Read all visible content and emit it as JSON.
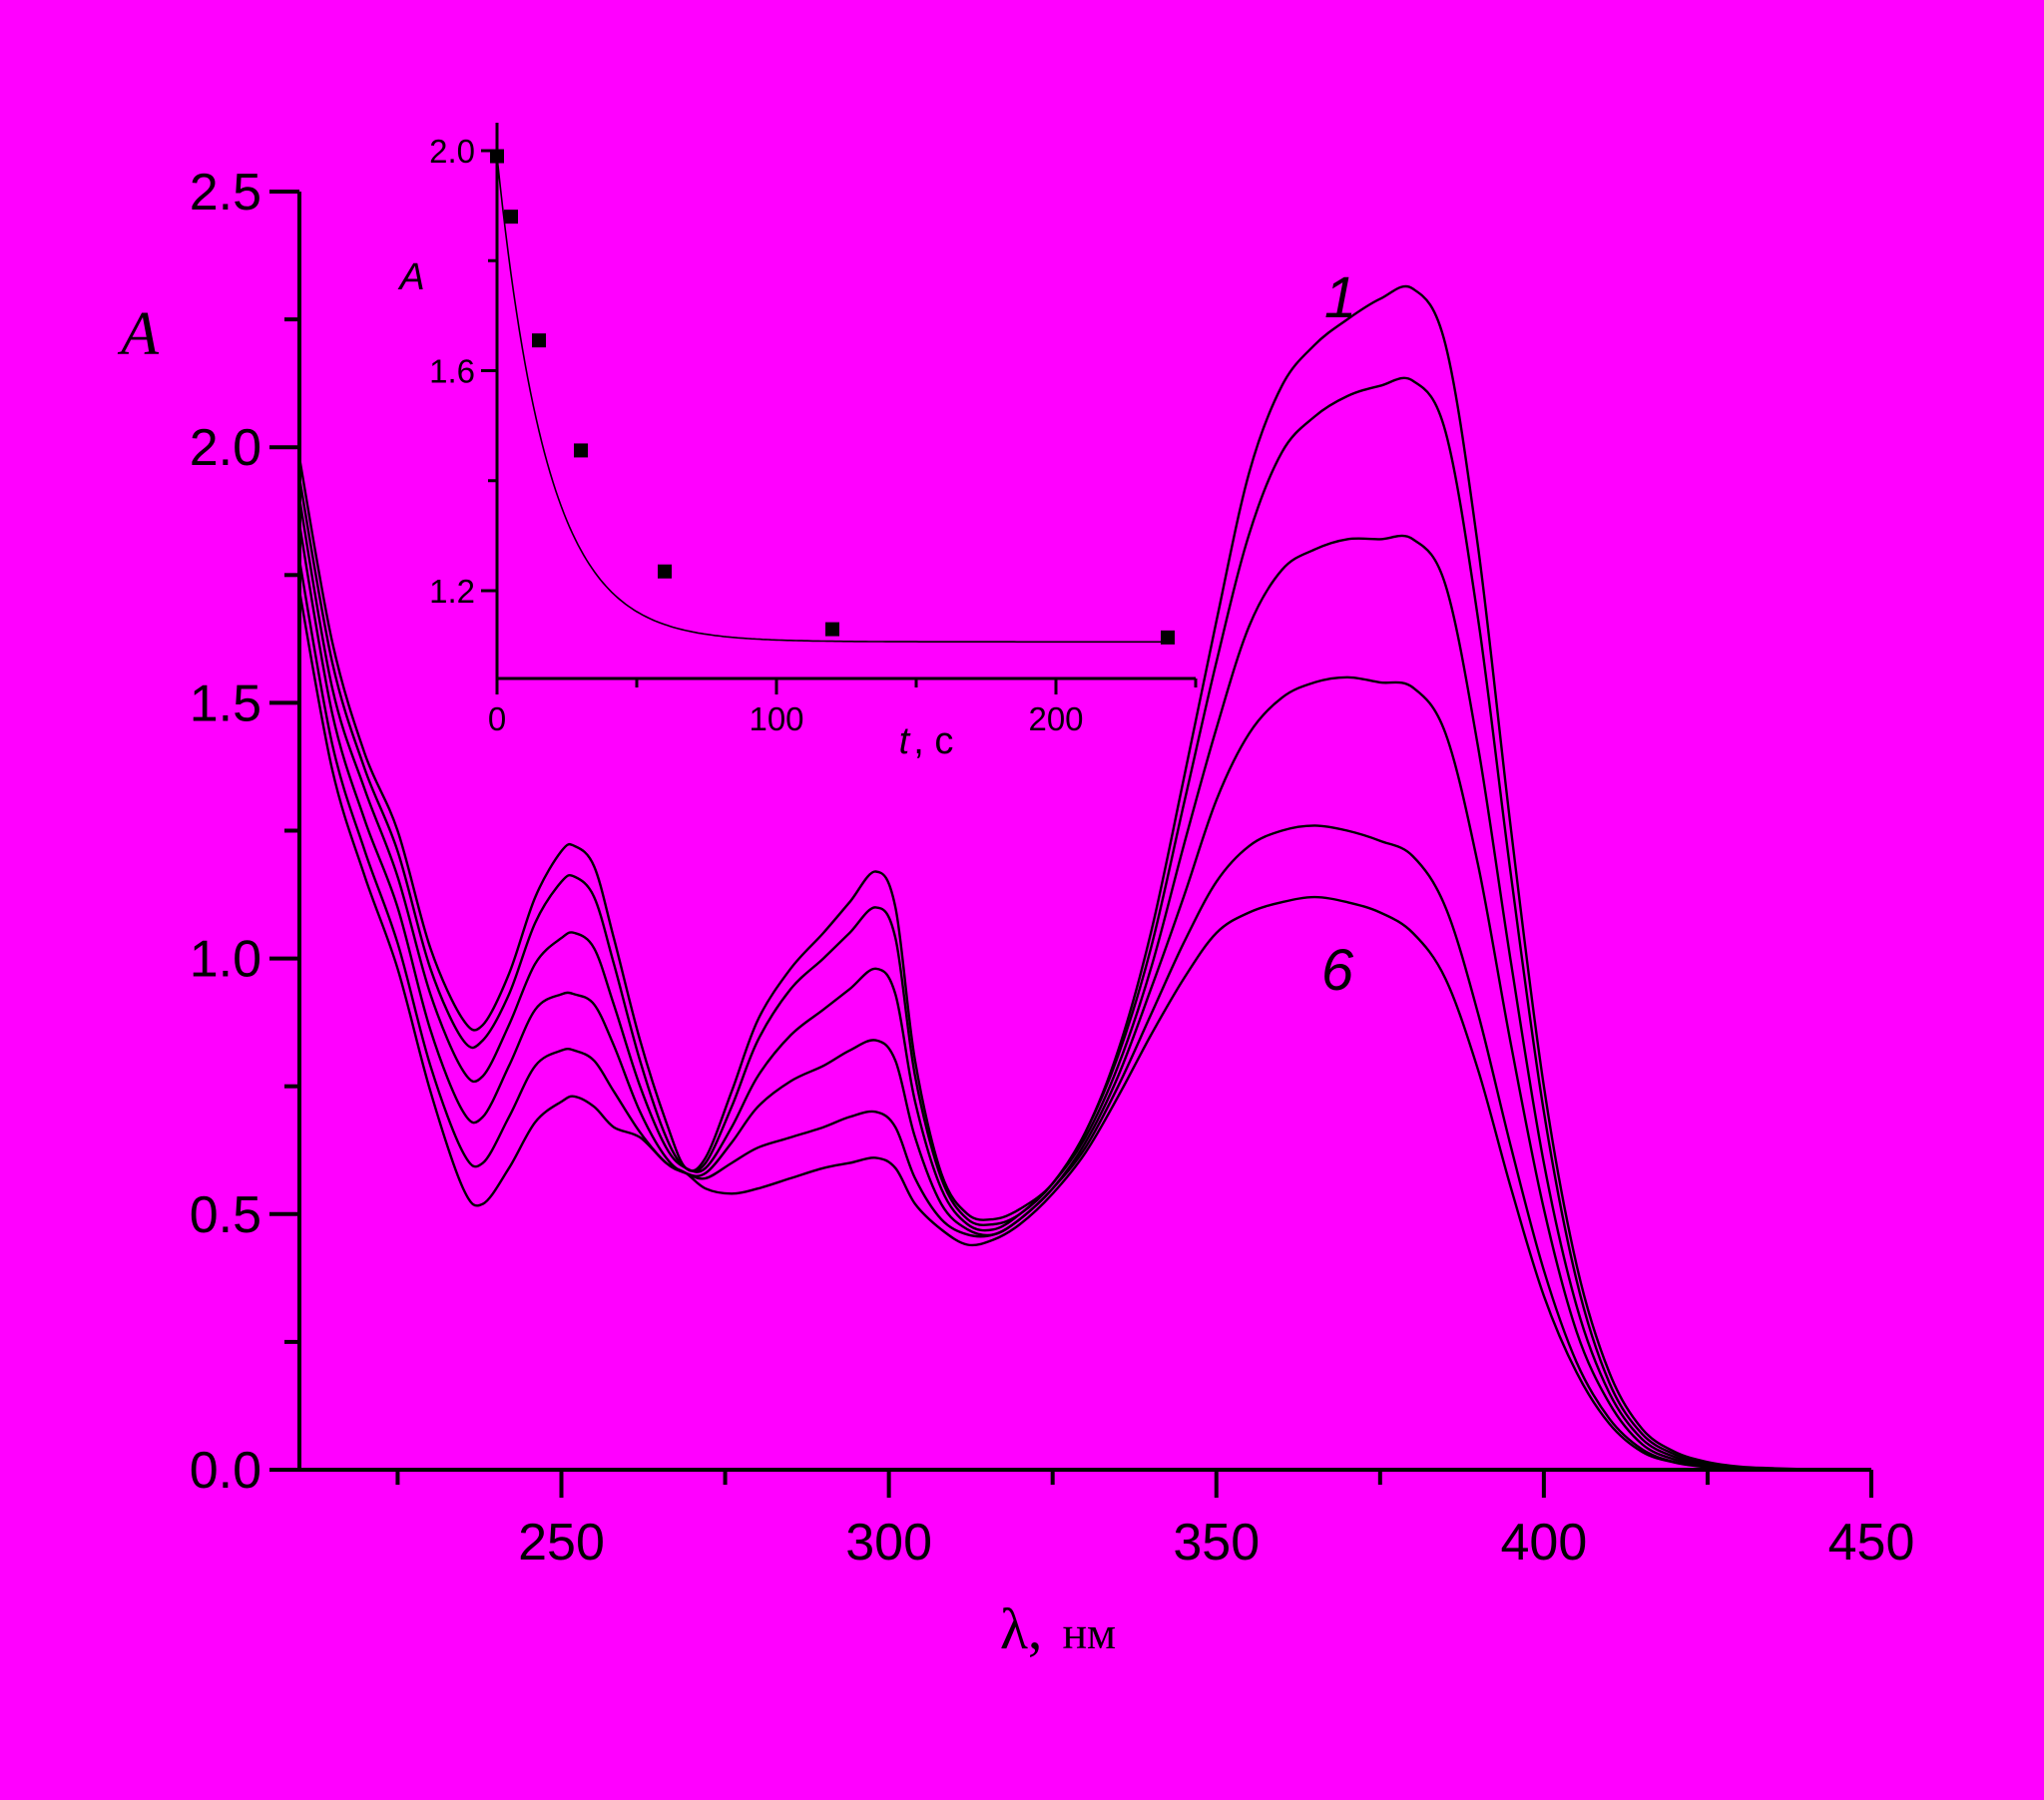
{
  "chart_data": [
    {
      "type": "line",
      "xlabel_symbol": "λ,",
      "xlabel_unit": "нм",
      "ylabel": "A",
      "xlim": [
        210,
        450
      ],
      "ylim": [
        0.0,
        2.5
      ],
      "x_ticks": [
        "250",
        "300",
        "350",
        "400",
        "450"
      ],
      "y_ticks": [
        "0.0",
        "0.5",
        "1.0",
        "1.5",
        "2.0",
        "2.5"
      ],
      "x_tick_values": [
        250,
        300,
        350,
        400,
        450
      ],
      "y_tick_values": [
        0.0,
        0.5,
        1.0,
        1.5,
        2.0,
        2.5
      ],
      "annotations": [
        {
          "text": "1",
          "x": 369,
          "y": 2.28
        },
        {
          "text": "6",
          "x": 369,
          "y": 0.93
        }
      ],
      "x": [
        210,
        215,
        220,
        225,
        230,
        235,
        238,
        242,
        246,
        250,
        252,
        255,
        258,
        262,
        266,
        269,
        272,
        276,
        280,
        285,
        290,
        294,
        298,
        301,
        304,
        308,
        312,
        316,
        320,
        325,
        330,
        335,
        340,
        345,
        350,
        355,
        360,
        365,
        370,
        375,
        380,
        385,
        390,
        395,
        400,
        405,
        410,
        415,
        420,
        425,
        430,
        435,
        440,
        445,
        450
      ],
      "series": [
        {
          "values": [
            1.98,
            1.62,
            1.4,
            1.25,
            1.02,
            0.88,
            0.87,
            0.97,
            1.12,
            1.21,
            1.22,
            1.18,
            1.04,
            0.84,
            0.68,
            0.59,
            0.61,
            0.74,
            0.88,
            0.98,
            1.05,
            1.11,
            1.17,
            1.1,
            0.8,
            0.58,
            0.5,
            0.49,
            0.51,
            0.56,
            0.66,
            0.82,
            1.05,
            1.35,
            1.66,
            1.95,
            2.12,
            2.2,
            2.25,
            2.29,
            2.31,
            2.2,
            1.8,
            1.25,
            0.75,
            0.4,
            0.19,
            0.08,
            0.035,
            0.015,
            0.006,
            0.003,
            0.001,
            0.0,
            0.0
          ]
        },
        {
          "values": [
            1.94,
            1.58,
            1.37,
            1.21,
            0.98,
            0.84,
            0.84,
            0.93,
            1.07,
            1.15,
            1.16,
            1.12,
            0.99,
            0.8,
            0.65,
            0.59,
            0.6,
            0.71,
            0.84,
            0.94,
            1.0,
            1.05,
            1.1,
            1.04,
            0.77,
            0.57,
            0.49,
            0.48,
            0.5,
            0.56,
            0.66,
            0.81,
            1.02,
            1.3,
            1.58,
            1.83,
            1.99,
            2.06,
            2.1,
            2.12,
            2.13,
            2.03,
            1.66,
            1.16,
            0.7,
            0.37,
            0.17,
            0.07,
            0.03,
            0.012,
            0.005,
            0.002,
            0.001,
            0.0,
            0.0
          ]
        },
        {
          "values": [
            1.9,
            1.53,
            1.33,
            1.16,
            0.93,
            0.78,
            0.77,
            0.87,
            0.99,
            1.04,
            1.05,
            1.02,
            0.91,
            0.75,
            0.63,
            0.59,
            0.59,
            0.67,
            0.77,
            0.85,
            0.9,
            0.94,
            0.98,
            0.93,
            0.72,
            0.55,
            0.48,
            0.47,
            0.5,
            0.56,
            0.65,
            0.79,
            0.98,
            1.22,
            1.45,
            1.65,
            1.76,
            1.8,
            1.82,
            1.82,
            1.82,
            1.73,
            1.41,
            0.99,
            0.6,
            0.32,
            0.15,
            0.06,
            0.025,
            0.01,
            0.004,
            0.002,
            0.0,
            0.0,
            0.0
          ]
        },
        {
          "values": [
            1.85,
            1.48,
            1.27,
            1.1,
            0.86,
            0.7,
            0.69,
            0.79,
            0.9,
            0.93,
            0.93,
            0.91,
            0.83,
            0.7,
            0.61,
            0.58,
            0.58,
            0.64,
            0.71,
            0.76,
            0.79,
            0.82,
            0.84,
            0.8,
            0.65,
            0.52,
            0.47,
            0.46,
            0.49,
            0.55,
            0.64,
            0.77,
            0.94,
            1.12,
            1.31,
            1.44,
            1.51,
            1.54,
            1.55,
            1.54,
            1.53,
            1.44,
            1.18,
            0.83,
            0.51,
            0.27,
            0.13,
            0.05,
            0.02,
            0.008,
            0.003,
            0.001,
            0.0,
            0.0,
            0.0
          ]
        },
        {
          "values": [
            1.78,
            1.42,
            1.21,
            1.03,
            0.79,
            0.62,
            0.6,
            0.69,
            0.79,
            0.82,
            0.82,
            0.8,
            0.74,
            0.66,
            0.6,
            0.58,
            0.57,
            0.6,
            0.63,
            0.65,
            0.67,
            0.69,
            0.7,
            0.67,
            0.57,
            0.49,
            0.46,
            0.46,
            0.49,
            0.55,
            0.63,
            0.75,
            0.89,
            1.03,
            1.15,
            1.22,
            1.25,
            1.26,
            1.25,
            1.23,
            1.2,
            1.1,
            0.89,
            0.63,
            0.39,
            0.21,
            0.1,
            0.04,
            0.015,
            0.006,
            0.002,
            0.001,
            0.0,
            0.0,
            0.0
          ]
        },
        {
          "values": [
            1.72,
            1.37,
            1.16,
            0.98,
            0.74,
            0.55,
            0.52,
            0.59,
            0.68,
            0.72,
            0.73,
            0.71,
            0.67,
            0.65,
            0.6,
            0.58,
            0.55,
            0.54,
            0.55,
            0.57,
            0.59,
            0.6,
            0.61,
            0.59,
            0.52,
            0.47,
            0.44,
            0.45,
            0.48,
            0.54,
            0.62,
            0.73,
            0.85,
            0.96,
            1.05,
            1.09,
            1.11,
            1.12,
            1.11,
            1.09,
            1.05,
            0.96,
            0.78,
            0.55,
            0.34,
            0.19,
            0.09,
            0.035,
            0.014,
            0.005,
            0.002,
            0.001,
            0.0,
            0.0,
            0.0
          ]
        }
      ]
    },
    {
      "type": "scatter",
      "xlabel_symbol": "t",
      "xlabel_unit": ", с",
      "ylabel": "A",
      "xlim": [
        0,
        250
      ],
      "ylim": [
        1.05,
        2.05
      ],
      "x_ticks": [
        "0",
        "100",
        "200"
      ],
      "y_ticks": [
        "1.2",
        "1.6",
        "2.0"
      ],
      "x_tick_values": [
        0,
        100,
        200
      ],
      "y_tick_values": [
        1.2,
        1.6,
        2.0
      ],
      "x": [
        0,
        5,
        15,
        30,
        60,
        120,
        240
      ],
      "values": [
        1.99,
        1.88,
        1.655,
        1.455,
        1.235,
        1.13,
        1.115
      ],
      "fit": {
        "type": "exponential",
        "a0": 1.107,
        "a1": 0.883,
        "tau": 18
      }
    }
  ]
}
